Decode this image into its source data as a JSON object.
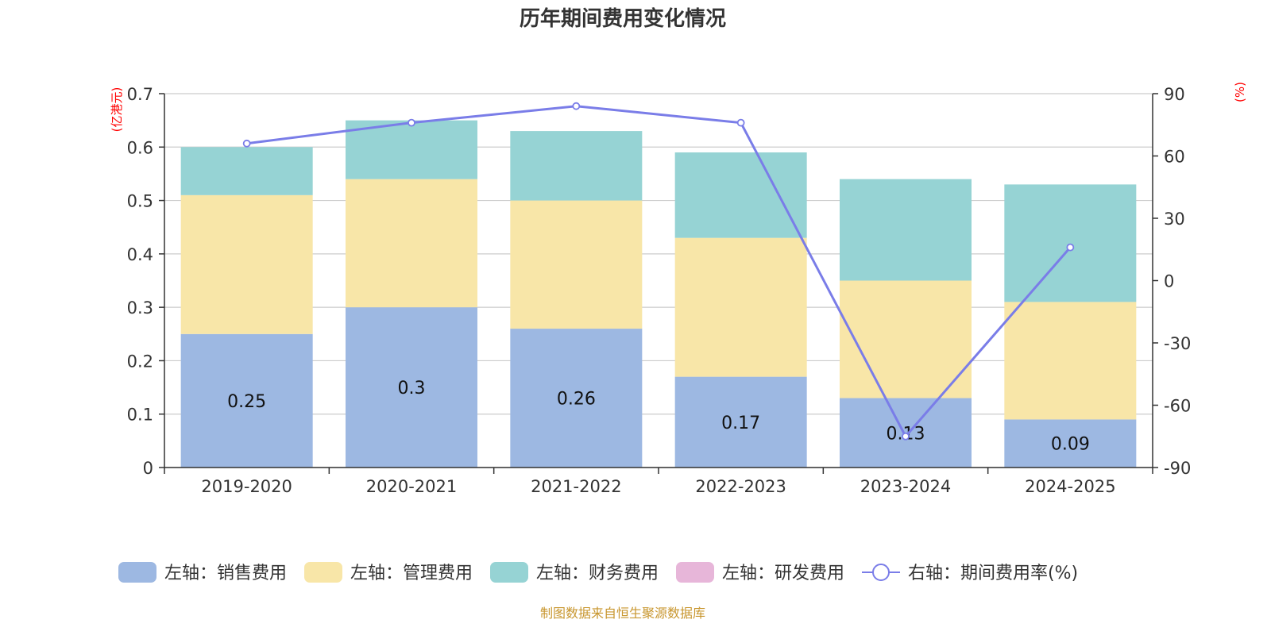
{
  "chart_data": {
    "type": "bar",
    "title": "历年期间费用变化情况",
    "categories": [
      "2019-2020",
      "2020-2021",
      "2021-2022",
      "2022-2023",
      "2023-2024",
      "2024-2025"
    ],
    "left_axis": {
      "unit_label": "(亿港元)",
      "ylim": [
        0,
        0.7
      ],
      "ticks": [
        "0",
        "0.1",
        "0.2",
        "0.3",
        "0.4",
        "0.5",
        "0.6",
        "0.7"
      ]
    },
    "right_axis": {
      "unit_label": "(%)",
      "ylim": [
        -90,
        90
      ],
      "ticks": [
        "-90",
        "-60",
        "-30",
        "0",
        "30",
        "60",
        "90"
      ]
    },
    "stacked": true,
    "grid": true,
    "legend_position": "bottom",
    "series": [
      {
        "name": "左轴：销售费用",
        "axis": "left",
        "kind": "bar",
        "color": "#9db8e2",
        "values": [
          0.25,
          0.3,
          0.26,
          0.17,
          0.13,
          0.09
        ],
        "data_labels": [
          "0.25",
          "0.3",
          "0.26",
          "0.17",
          "0.13",
          "0.09"
        ]
      },
      {
        "name": "左轴：管理费用",
        "axis": "left",
        "kind": "bar",
        "color": "#f8e6a8",
        "values": [
          0.26,
          0.24,
          0.24,
          0.26,
          0.22,
          0.22
        ]
      },
      {
        "name": "左轴：财务费用",
        "axis": "left",
        "kind": "bar",
        "color": "#96d3d4",
        "values": [
          0.09,
          0.11,
          0.13,
          0.16,
          0.19,
          0.22
        ]
      },
      {
        "name": "左轴：研发费用",
        "axis": "left",
        "kind": "bar",
        "color": "#e7b6d9",
        "values": [
          0,
          0,
          0,
          0,
          0,
          0
        ]
      },
      {
        "name": "右轴：期间费用率(%)",
        "axis": "right",
        "kind": "line",
        "color": "#7a7de8",
        "values": [
          66,
          76,
          84,
          76,
          -75,
          16
        ]
      }
    ]
  },
  "source_text": "制图数据来自恒生聚源数据库",
  "colors": {
    "unit_label": "#ff0000",
    "source_text": "#c8962e",
    "grid": "#cccccc",
    "axis": "#333333"
  }
}
